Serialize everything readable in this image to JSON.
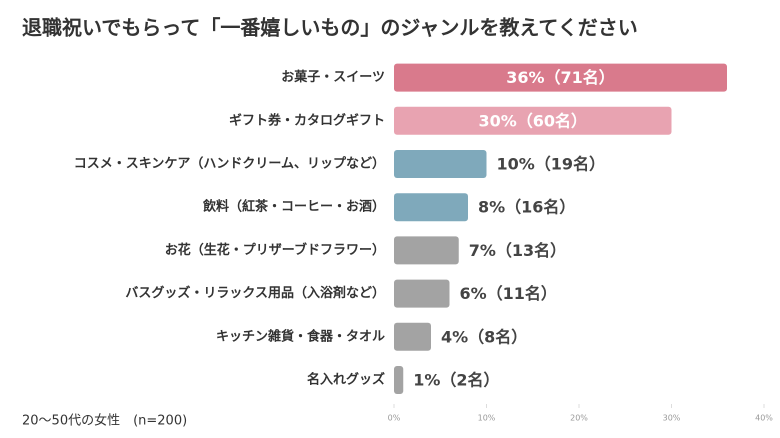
{
  "chart_data": {
    "type": "bar",
    "orientation": "horizontal",
    "title": "退職祝いでもらって「一番嬉しいもの」のジャンルを教えてください",
    "categories": [
      "お菓子・スイーツ",
      "ギフト券・カタログギフト",
      "コスメ・スキンケア（ハンドクリーム、リップなど）",
      "飲料（紅茶・コーヒー・お酒）",
      "お花（生花・プリザーブドフラワー）",
      "バスグッズ・リラックス用品（入浴剤など）",
      "キッチン雑貨・食器・タオル",
      "名入れグッズ"
    ],
    "values": [
      36,
      30,
      10,
      8,
      7,
      6,
      4,
      1
    ],
    "value_labels": [
      "36%（71名）",
      "30%（60名）",
      "10%（19名）",
      "8%（16名）",
      "7%（13名）",
      "6%（11名）",
      "4%（8名）",
      "1%（2名）"
    ],
    "colors": [
      "#d97a8c",
      "#e8a3b1",
      "#7fa9bb",
      "#7fa9bb",
      "#a3a3a3",
      "#a3a3a3",
      "#a3a3a3",
      "#a3a3a3"
    ],
    "xlim": [
      0,
      40
    ],
    "xticks": [
      {
        "value": 0,
        "label": "0%"
      },
      {
        "value": 10,
        "label": "10%"
      },
      {
        "value": 20,
        "label": "20%"
      },
      {
        "value": 30,
        "label": "30%"
      },
      {
        "value": 40,
        "label": "40%"
      }
    ],
    "note": "20〜50代の女性　(n=200)"
  }
}
